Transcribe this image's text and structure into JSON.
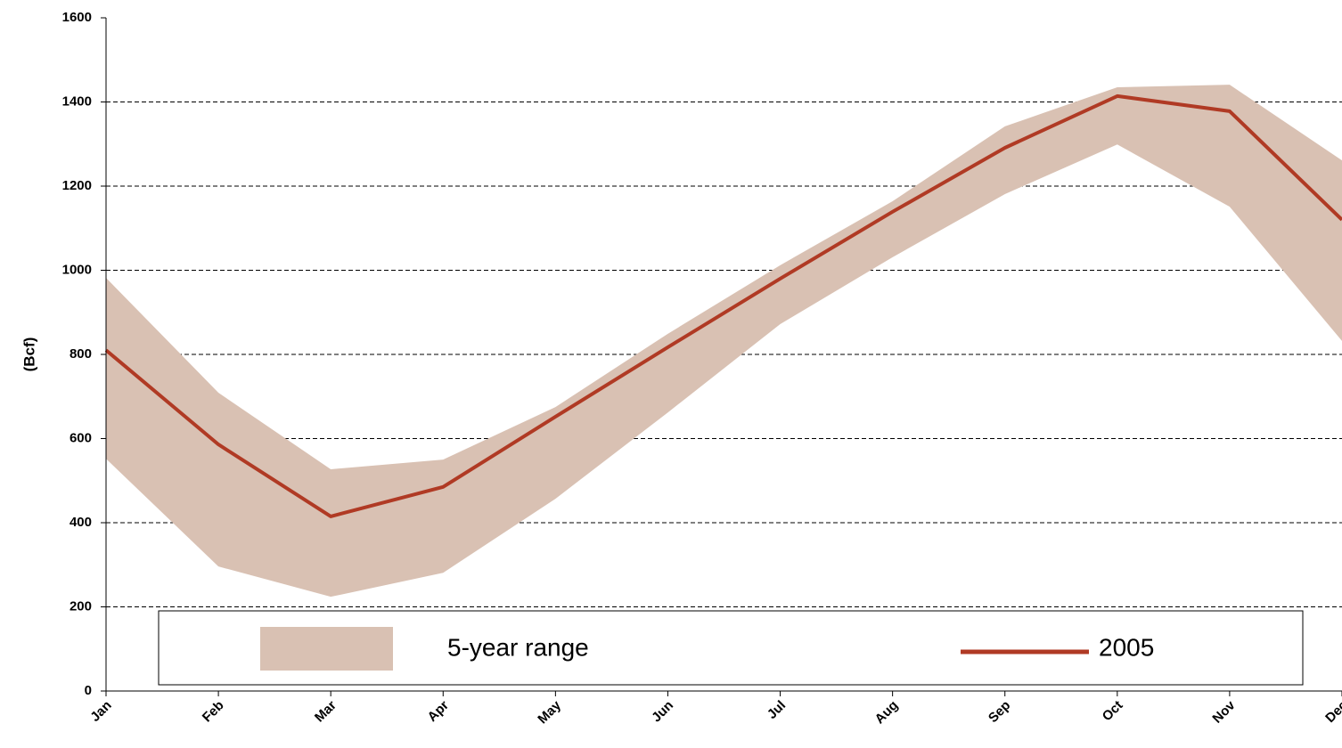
{
  "chart_data": {
    "type": "line",
    "y_label": "(Bcf)",
    "categories": [
      "Jan",
      "Feb",
      "Mar",
      "Apr",
      "May",
      "Jun",
      "Jul",
      "Aug",
      "Sep",
      "Oct",
      "Nov",
      "Dec"
    ],
    "series": [
      {
        "name": "5-year range",
        "kind": "band",
        "color": "#d9c1b3",
        "upper": [
          982,
          709,
          527,
          550,
          675,
          849,
          1012,
          1164,
          1342,
          1435,
          1441,
          1261
        ],
        "lower": [
          552,
          296,
          224,
          281,
          457,
          662,
          872,
          1031,
          1181,
          1299,
          1151,
          832
        ]
      },
      {
        "name": "2005",
        "kind": "line",
        "color": "#b03a24",
        "values": [
          810,
          586,
          415,
          485,
          652,
          817,
          980,
          1139,
          1291,
          1414,
          1378,
          1120
        ]
      }
    ],
    "ylim": [
      0,
      1600
    ],
    "yticks": [
      0,
      200,
      400,
      600,
      800,
      1000,
      1200,
      1400,
      1600
    ],
    "grid": true
  }
}
